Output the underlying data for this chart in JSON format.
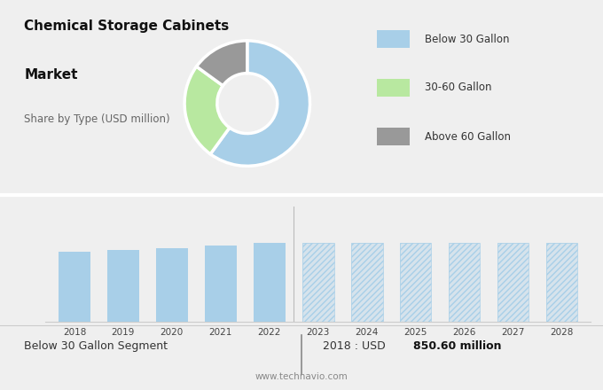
{
  "title_line1": "Chemical Storage Cabinets",
  "title_line2": "Market",
  "subtitle": "Share by Type (USD million)",
  "donut_labels": [
    "Below 30 Gallon",
    "30-60 Gallon",
    "Above 60 Gallon"
  ],
  "donut_values": [
    60,
    25,
    15
  ],
  "donut_colors": [
    "#a8cfe8",
    "#b8e8a0",
    "#999999"
  ],
  "bar_years_solid": [
    2018,
    2019,
    2020,
    2021,
    2022
  ],
  "bar_values_solid": [
    850,
    870,
    895,
    925,
    960
  ],
  "bar_years_forecast": [
    2023,
    2024,
    2025,
    2026,
    2027,
    2028
  ],
  "bar_values_forecast": [
    960,
    960,
    960,
    960,
    960,
    960
  ],
  "bar_color_solid": "#a8cfe8",
  "bar_color_forecast": "#a8cfe8",
  "footer_left": "Below 30 Gallon Segment",
  "footer_right_normal": "2018 : USD ",
  "footer_right_bold": "850.60 million",
  "footer_url": "www.technavio.com",
  "bg_top": "#dde2e7",
  "bg_bottom": "#efefef",
  "bg_footer": "#f5f5f5",
  "bar_ylim": [
    0,
    1400
  ],
  "divider_color": "#aaaaaa",
  "grid_color": "#d8d8d8"
}
